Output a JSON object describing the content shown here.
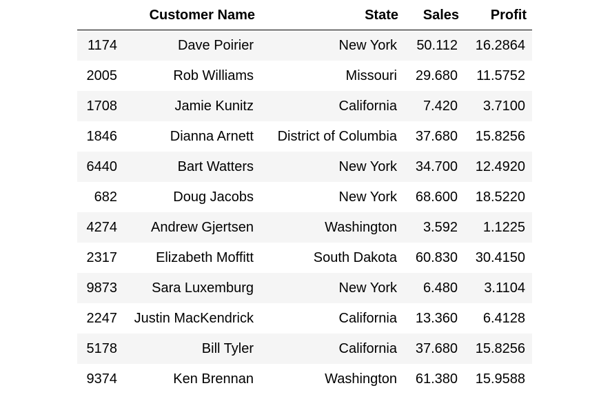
{
  "table": {
    "columns": {
      "index": "",
      "customer_name": "Customer Name",
      "state": "State",
      "sales": "Sales",
      "profit": "Profit"
    },
    "rows": [
      {
        "index": "1174",
        "customer_name": "Dave Poirier",
        "state": "New York",
        "sales": "50.112",
        "profit": "16.2864"
      },
      {
        "index": "2005",
        "customer_name": "Rob Williams",
        "state": "Missouri",
        "sales": "29.680",
        "profit": "11.5752"
      },
      {
        "index": "1708",
        "customer_name": "Jamie Kunitz",
        "state": "California",
        "sales": "7.420",
        "profit": "3.7100"
      },
      {
        "index": "1846",
        "customer_name": "Dianna Arnett",
        "state": "District of Columbia",
        "sales": "37.680",
        "profit": "15.8256"
      },
      {
        "index": "6440",
        "customer_name": "Bart Watters",
        "state": "New York",
        "sales": "34.700",
        "profit": "12.4920"
      },
      {
        "index": "682",
        "customer_name": "Doug Jacobs",
        "state": "New York",
        "sales": "68.600",
        "profit": "18.5220"
      },
      {
        "index": "4274",
        "customer_name": "Andrew Gjertsen",
        "state": "Washington",
        "sales": "3.592",
        "profit": "1.1225"
      },
      {
        "index": "2317",
        "customer_name": "Elizabeth Moffitt",
        "state": "South Dakota",
        "sales": "60.830",
        "profit": "30.4150"
      },
      {
        "index": "9873",
        "customer_name": "Sara Luxemburg",
        "state": "New York",
        "sales": "6.480",
        "profit": "3.1104"
      },
      {
        "index": "2247",
        "customer_name": "Justin MacKendrick",
        "state": "California",
        "sales": "13.360",
        "profit": "6.4128"
      },
      {
        "index": "5178",
        "customer_name": "Bill Tyler",
        "state": "California",
        "sales": "37.680",
        "profit": "15.8256"
      },
      {
        "index": "9374",
        "customer_name": "Ken Brennan",
        "state": "Washington",
        "sales": "61.380",
        "profit": "15.9588"
      }
    ]
  }
}
